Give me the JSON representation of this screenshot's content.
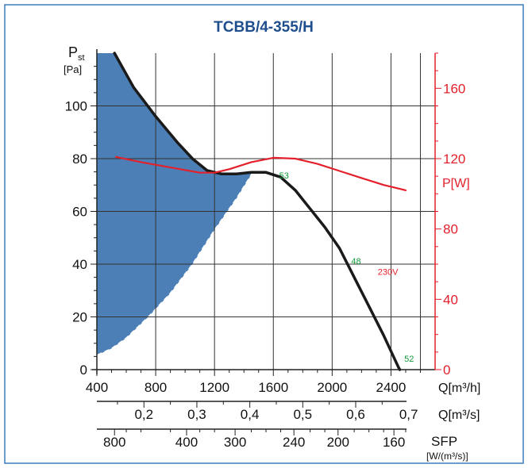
{
  "chart_data": {
    "type": "line",
    "title": "TCBB/4-355/H",
    "left_axis": {
      "label": "P",
      "label_sub": "st",
      "unit": "[Pa]",
      "ylim": [
        0,
        120
      ],
      "ticks": [
        "0",
        "20",
        "40",
        "60",
        "80",
        "100"
      ],
      "tick_values": [
        0,
        20,
        40,
        60,
        80,
        100
      ]
    },
    "right_axis": {
      "label": "P[W]",
      "ylim": [
        0,
        180
      ],
      "ticks": [
        "0",
        "40",
        "80",
        "120",
        "160"
      ],
      "tick_values": [
        0,
        40,
        80,
        120,
        160
      ]
    },
    "x_axis": {
      "label": "Q[m³/h]",
      "xlim": [
        400,
        2700
      ],
      "ticks": [
        "400",
        "800",
        "1200",
        "1600",
        "2000",
        "2400"
      ],
      "tick_values": [
        400,
        800,
        1200,
        1600,
        2000,
        2400
      ]
    },
    "x_axis_m3s": {
      "label": "Q[m³/s]",
      "ticks": [
        "0,2",
        "0,3",
        "0,4",
        "0,5",
        "0,6",
        "0,7"
      ],
      "tick_values_m3h": [
        720,
        1080,
        1440,
        1800,
        2160,
        2520
      ]
    },
    "x_axis_sfp": {
      "label": "SFP",
      "unit": "[W/(m³/s)]",
      "ticks": [
        "800",
        "400",
        "300",
        "240",
        "200",
        "160"
      ],
      "tick_values_m3h": [
        520,
        1010,
        1340,
        1740,
        2040,
        2420
      ]
    },
    "grid": true,
    "series": [
      {
        "role": "pressure",
        "color": "#1a1a1a",
        "points": [
          [
            520,
            120
          ],
          [
            650,
            107
          ],
          [
            800,
            96
          ],
          [
            950,
            86
          ],
          [
            1050,
            80
          ],
          [
            1150,
            75.5
          ],
          [
            1250,
            74.2
          ],
          [
            1350,
            74.2
          ],
          [
            1450,
            74.8
          ],
          [
            1550,
            74.8
          ],
          [
            1650,
            73
          ],
          [
            1750,
            68
          ],
          [
            1850,
            61
          ],
          [
            1950,
            54
          ],
          [
            2050,
            46
          ],
          [
            2150,
            35
          ],
          [
            2250,
            24
          ],
          [
            2350,
            13
          ],
          [
            2450,
            1
          ],
          [
            2460,
            0
          ]
        ]
      },
      {
        "role": "power",
        "axis": "right",
        "color": "#e3202b",
        "points": [
          [
            530,
            121
          ],
          [
            700,
            118
          ],
          [
            900,
            115
          ],
          [
            1100,
            112
          ],
          [
            1200,
            112
          ],
          [
            1300,
            114
          ],
          [
            1450,
            118
          ],
          [
            1600,
            120.5
          ],
          [
            1750,
            120
          ],
          [
            1900,
            117
          ],
          [
            2050,
            113
          ],
          [
            2200,
            109
          ],
          [
            2350,
            105
          ],
          [
            2500,
            102
          ]
        ]
      }
    ],
    "stall_region": {
      "color": "#4b7fb5",
      "upper_points": [
        [
          520,
          120
        ],
        [
          650,
          107
        ],
        [
          800,
          96
        ],
        [
          950,
          86
        ],
        [
          1050,
          80
        ],
        [
          1150,
          75.5
        ],
        [
          1250,
          74.2
        ],
        [
          1350,
          74.2
        ],
        [
          1450,
          74.8
        ],
        [
          1460,
          74.8
        ]
      ],
      "lower_points": [
        [
          1460,
          74.8
        ],
        [
          1350,
          65
        ],
        [
          1200,
          53
        ],
        [
          1050,
          40
        ],
        [
          900,
          29
        ],
        [
          750,
          20
        ],
        [
          600,
          12
        ],
        [
          500,
          8
        ],
        [
          400,
          5.5
        ]
      ]
    },
    "annotations": [
      {
        "text": "53",
        "x": 1640,
        "y": 72.5,
        "color": "#149c3c"
      },
      {
        "text": "48",
        "x": 2130,
        "y": 40,
        "color": "#149c3c"
      },
      {
        "text": "52",
        "x": 2490,
        "y": 3,
        "color": "#149c3c"
      },
      {
        "text": "230V",
        "x": 2310,
        "y": 36,
        "color": "#e3202b"
      }
    ]
  },
  "colors": {
    "frame": "#3a7dbf",
    "title": "#1f4e8c",
    "axis": "#222222",
    "grid": "#333333",
    "red": "#e3202b",
    "green": "#149c3c"
  }
}
